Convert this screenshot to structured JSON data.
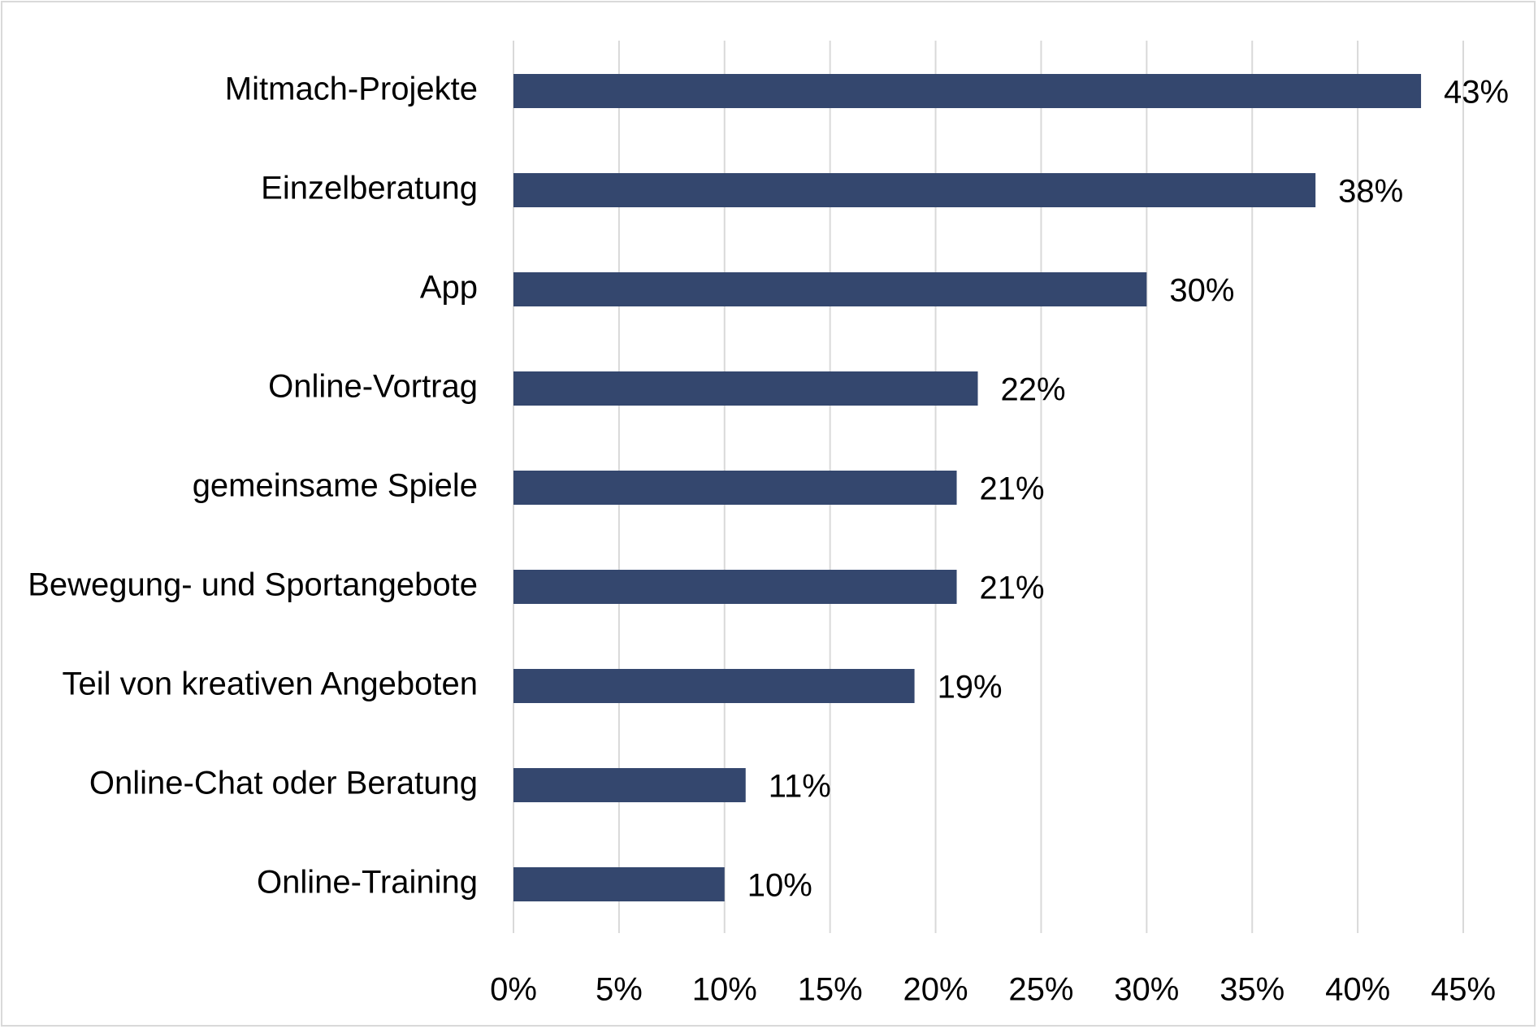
{
  "chart_data": {
    "type": "bar",
    "orientation": "horizontal",
    "title": "",
    "xlabel": "",
    "ylabel": "",
    "categories": [
      "Mitmach-Projekte",
      "Einzelberatung",
      "App",
      "Online-Vortrag",
      "gemeinsame Spiele",
      "Bewegung- und Sportangebote",
      "Teil von kreativen Angeboten",
      "Online-Chat oder Beratung",
      "Online-Training"
    ],
    "values": [
      43,
      38,
      30,
      22,
      21,
      21,
      19,
      11,
      10
    ],
    "data_labels": [
      "43%",
      "38%",
      "30%",
      "22%",
      "21%",
      "21%",
      "19%",
      "11%",
      "10%"
    ],
    "xlim": [
      0,
      45
    ],
    "x_ticks": [
      0,
      5,
      10,
      15,
      20,
      25,
      30,
      35,
      40,
      45
    ],
    "x_tick_labels": [
      "0%",
      "5%",
      "10%",
      "15%",
      "20%",
      "25%",
      "30%",
      "35%",
      "40%",
      "45%"
    ],
    "grid": "vertical",
    "legend": "none",
    "colors": {
      "bar": "#34476e",
      "grid": "#d9d9d9",
      "text": "#000000",
      "border": "#d9d9d9"
    }
  }
}
